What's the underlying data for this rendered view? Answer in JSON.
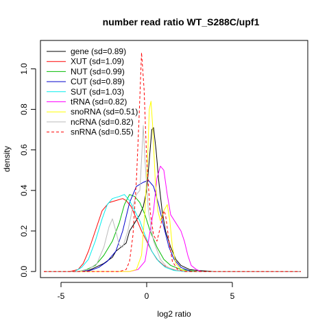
{
  "chart_data": {
    "type": "line",
    "title": "number read ratio WT_S288C/upf1",
    "xlabel": "log2 ratio",
    "ylabel": "density",
    "xlim": [
      -6.2,
      9.4
    ],
    "ylim": [
      -0.03,
      1.14
    ],
    "xticks": [
      -5,
      0,
      5
    ],
    "yticks": [
      0.0,
      0.2,
      0.4,
      0.6,
      0.8,
      1.0
    ],
    "xtick_labels": [
      "-5",
      "0",
      "5"
    ],
    "ytick_labels": [
      "0.0",
      "0.2",
      "0.4",
      "0.6",
      "0.8",
      "1.0"
    ],
    "grid": false,
    "legend_position": "top-left",
    "series": [
      {
        "name": "gene (sd=0.89)",
        "color": "#000000",
        "dash": false,
        "points": [
          [
            -6,
            0
          ],
          [
            -4,
            0
          ],
          [
            -3.4,
            0.005
          ],
          [
            -3,
            0.02
          ],
          [
            -2.5,
            0.04
          ],
          [
            -2,
            0.07
          ],
          [
            -1.8,
            0.1
          ],
          [
            -1.5,
            0.12
          ],
          [
            -1.2,
            0.14
          ],
          [
            -1.0,
            0.2
          ],
          [
            -0.7,
            0.24
          ],
          [
            -0.4,
            0.28
          ],
          [
            -0.2,
            0.32
          ],
          [
            0,
            0.4
          ],
          [
            0.15,
            0.55
          ],
          [
            0.3,
            0.7
          ],
          [
            0.4,
            0.71
          ],
          [
            0.55,
            0.6
          ],
          [
            0.7,
            0.45
          ],
          [
            0.9,
            0.3
          ],
          [
            1.1,
            0.2
          ],
          [
            1.4,
            0.12
          ],
          [
            1.7,
            0.06
          ],
          [
            2.0,
            0.03
          ],
          [
            2.5,
            0.01
          ],
          [
            3,
            0.005
          ],
          [
            4,
            0
          ],
          [
            9,
            0
          ]
        ]
      },
      {
        "name": "XUT (sd=1.09)",
        "color": "#ff0000",
        "dash": false,
        "points": [
          [
            -6,
            0
          ],
          [
            -4.5,
            0
          ],
          [
            -4,
            0.01
          ],
          [
            -3.7,
            0.04
          ],
          [
            -3.4,
            0.1
          ],
          [
            -3.0,
            0.2
          ],
          [
            -2.6,
            0.3
          ],
          [
            -2.2,
            0.34
          ],
          [
            -1.8,
            0.35
          ],
          [
            -1.4,
            0.36
          ],
          [
            -1.2,
            0.35
          ],
          [
            -0.9,
            0.32
          ],
          [
            -0.6,
            0.26
          ],
          [
            -0.3,
            0.2
          ],
          [
            0,
            0.15
          ],
          [
            0.3,
            0.1
          ],
          [
            0.6,
            0.06
          ],
          [
            1.0,
            0.03
          ],
          [
            1.5,
            0.01
          ],
          [
            2.2,
            0
          ],
          [
            9,
            0
          ]
        ]
      },
      {
        "name": "NUT (sd=0.99)",
        "color": "#00bb00",
        "dash": false,
        "points": [
          [
            -6,
            0
          ],
          [
            -4,
            0
          ],
          [
            -3.5,
            0.01
          ],
          [
            -3,
            0.03
          ],
          [
            -2.5,
            0.08
          ],
          [
            -2.0,
            0.15
          ],
          [
            -1.6,
            0.24
          ],
          [
            -1.3,
            0.33
          ],
          [
            -1.0,
            0.38
          ],
          [
            -0.7,
            0.37
          ],
          [
            -0.4,
            0.34
          ],
          [
            -0.1,
            0.28
          ],
          [
            0.2,
            0.2
          ],
          [
            0.6,
            0.12
          ],
          [
            1.0,
            0.06
          ],
          [
            1.4,
            0.03
          ],
          [
            2,
            0.01
          ],
          [
            3,
            0
          ],
          [
            9,
            0
          ]
        ]
      },
      {
        "name": "CUT (sd=0.89)",
        "color": "#0000cc",
        "dash": false,
        "points": [
          [
            -6,
            0
          ],
          [
            -4,
            0
          ],
          [
            -3.3,
            0.005
          ],
          [
            -2.8,
            0.02
          ],
          [
            -2.3,
            0.05
          ],
          [
            -1.8,
            0.1
          ],
          [
            -1.4,
            0.2
          ],
          [
            -1.0,
            0.34
          ],
          [
            -0.6,
            0.42
          ],
          [
            -0.2,
            0.44
          ],
          [
            0.1,
            0.45
          ],
          [
            0.4,
            0.42
          ],
          [
            0.7,
            0.33
          ],
          [
            1.0,
            0.22
          ],
          [
            1.3,
            0.12
          ],
          [
            1.6,
            0.06
          ],
          [
            2.0,
            0.02
          ],
          [
            2.6,
            0
          ],
          [
            9,
            0
          ]
        ]
      },
      {
        "name": "SUT (sd=1.03)",
        "color": "#00eeee",
        "dash": false,
        "points": [
          [
            -6,
            0
          ],
          [
            -4.2,
            0
          ],
          [
            -3.8,
            0.02
          ],
          [
            -3.4,
            0.06
          ],
          [
            -3.0,
            0.15
          ],
          [
            -2.6,
            0.26
          ],
          [
            -2.3,
            0.33
          ],
          [
            -2.0,
            0.36
          ],
          [
            -1.6,
            0.37
          ],
          [
            -1.3,
            0.38
          ],
          [
            -1.0,
            0.35
          ],
          [
            -0.7,
            0.3
          ],
          [
            -0.4,
            0.25
          ],
          [
            -0.1,
            0.18
          ],
          [
            0.3,
            0.1
          ],
          [
            0.7,
            0.05
          ],
          [
            1.1,
            0.02
          ],
          [
            1.6,
            0.005
          ],
          [
            2.2,
            0
          ],
          [
            9,
            0
          ]
        ]
      },
      {
        "name": "tRNA (sd=0.82)",
        "color": "#ff00ff",
        "dash": false,
        "points": [
          [
            -6,
            0
          ],
          [
            -1.0,
            0
          ],
          [
            -0.5,
            0.01
          ],
          [
            -0.1,
            0.05
          ],
          [
            0.2,
            0.2
          ],
          [
            0.4,
            0.3
          ],
          [
            0.6,
            0.46
          ],
          [
            0.8,
            0.52
          ],
          [
            1.0,
            0.5
          ],
          [
            1.2,
            0.38
          ],
          [
            1.4,
            0.28
          ],
          [
            1.7,
            0.24
          ],
          [
            2.0,
            0.2
          ],
          [
            2.2,
            0.15
          ],
          [
            2.4,
            0.08
          ],
          [
            2.6,
            0.03
          ],
          [
            2.9,
            0.01
          ],
          [
            3.2,
            0
          ],
          [
            9,
            0
          ]
        ]
      },
      {
        "name": "snoRNA (sd=0.51)",
        "color": "#ffff00",
        "dash": false,
        "points": [
          [
            -6,
            0
          ],
          [
            -1.0,
            0
          ],
          [
            -0.6,
            0.01
          ],
          [
            -0.3,
            0.08
          ],
          [
            -0.1,
            0.3
          ],
          [
            0.05,
            0.55
          ],
          [
            0.15,
            0.8
          ],
          [
            0.25,
            0.84
          ],
          [
            0.35,
            0.72
          ],
          [
            0.5,
            0.45
          ],
          [
            0.65,
            0.3
          ],
          [
            0.8,
            0.25
          ],
          [
            1.0,
            0.3
          ],
          [
            1.2,
            0.33
          ],
          [
            1.35,
            0.25
          ],
          [
            1.5,
            0.12
          ],
          [
            1.7,
            0.04
          ],
          [
            2.0,
            0.01
          ],
          [
            2.4,
            0
          ],
          [
            9,
            0
          ]
        ]
      },
      {
        "name": "ncRNA (sd=0.82)",
        "color": "#bbbbbb",
        "dash": false,
        "points": [
          [
            -6,
            0
          ],
          [
            -4,
            0
          ],
          [
            -3.4,
            0.01
          ],
          [
            -2.9,
            0.04
          ],
          [
            -2.5,
            0.12
          ],
          [
            -2.2,
            0.22
          ],
          [
            -2.0,
            0.26
          ],
          [
            -1.8,
            0.2
          ],
          [
            -1.6,
            0.13
          ],
          [
            -1.4,
            0.12
          ],
          [
            -1.1,
            0.2
          ],
          [
            -0.8,
            0.32
          ],
          [
            -0.6,
            0.38
          ],
          [
            -0.4,
            0.4
          ],
          [
            -0.3,
            0.55
          ],
          [
            -0.2,
            0.72
          ],
          [
            -0.1,
            0.55
          ],
          [
            0.1,
            0.3
          ],
          [
            0.4,
            0.15
          ],
          [
            0.8,
            0.06
          ],
          [
            1.2,
            0.02
          ],
          [
            1.8,
            0.005
          ],
          [
            2.5,
            0
          ],
          [
            9,
            0
          ]
        ]
      },
      {
        "name": "snRNA (sd=0.55)",
        "color": "#ff0000",
        "dash": true,
        "points": [
          [
            -6,
            0
          ],
          [
            -1.6,
            0
          ],
          [
            -1.2,
            0.01
          ],
          [
            -1.0,
            0.05
          ],
          [
            -0.8,
            0.18
          ],
          [
            -0.6,
            0.45
          ],
          [
            -0.45,
            0.75
          ],
          [
            -0.3,
            1.08
          ],
          [
            -0.15,
            0.9
          ],
          [
            0,
            0.55
          ],
          [
            0.2,
            0.3
          ],
          [
            0.4,
            0.18
          ],
          [
            0.6,
            0.15
          ],
          [
            0.8,
            0.22
          ],
          [
            1.0,
            0.3
          ],
          [
            1.1,
            0.28
          ],
          [
            1.3,
            0.15
          ],
          [
            1.5,
            0.05
          ],
          [
            1.8,
            0.01
          ],
          [
            2.2,
            0
          ],
          [
            9,
            0
          ]
        ]
      }
    ]
  }
}
